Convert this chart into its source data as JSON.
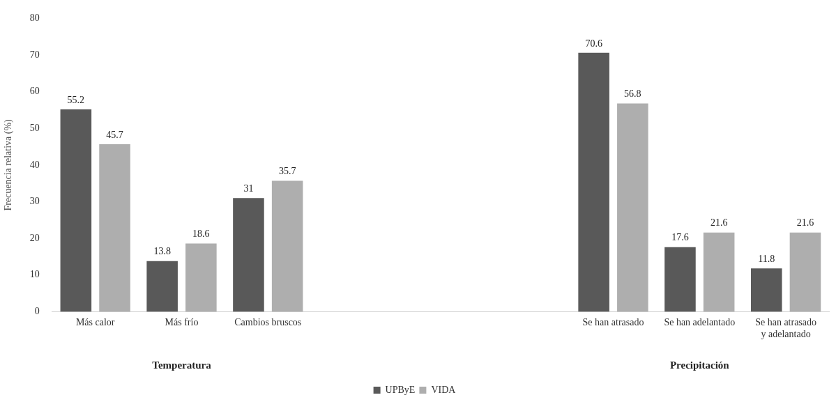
{
  "chart_data": {
    "type": "bar",
    "ylabel": "Frecuencia relativa (%)",
    "categories": [
      "Más calor",
      "Más frío",
      "Cambios bruscos",
      null,
      null,
      null,
      "Se han atrasado",
      "Se han adelantado",
      "Se han atrasado y adelantado"
    ],
    "series": [
      {
        "name": "UPByE",
        "color": "#595959",
        "values": [
          55.2,
          13.8,
          31,
          null,
          null,
          null,
          70.6,
          17.6,
          11.8
        ]
      },
      {
        "name": "VIDA",
        "color": "#aeaeae",
        "values": [
          45.7,
          18.6,
          35.7,
          null,
          null,
          null,
          56.8,
          21.6,
          21.6
        ]
      }
    ],
    "ylim": [
      0,
      80
    ],
    "yticks": [
      0,
      10,
      20,
      30,
      40,
      50,
      60,
      70,
      80
    ],
    "grid": false,
    "legend": "bottom",
    "data_labels": true,
    "annotations": [
      "Temperatura",
      "Precipitación"
    ]
  }
}
